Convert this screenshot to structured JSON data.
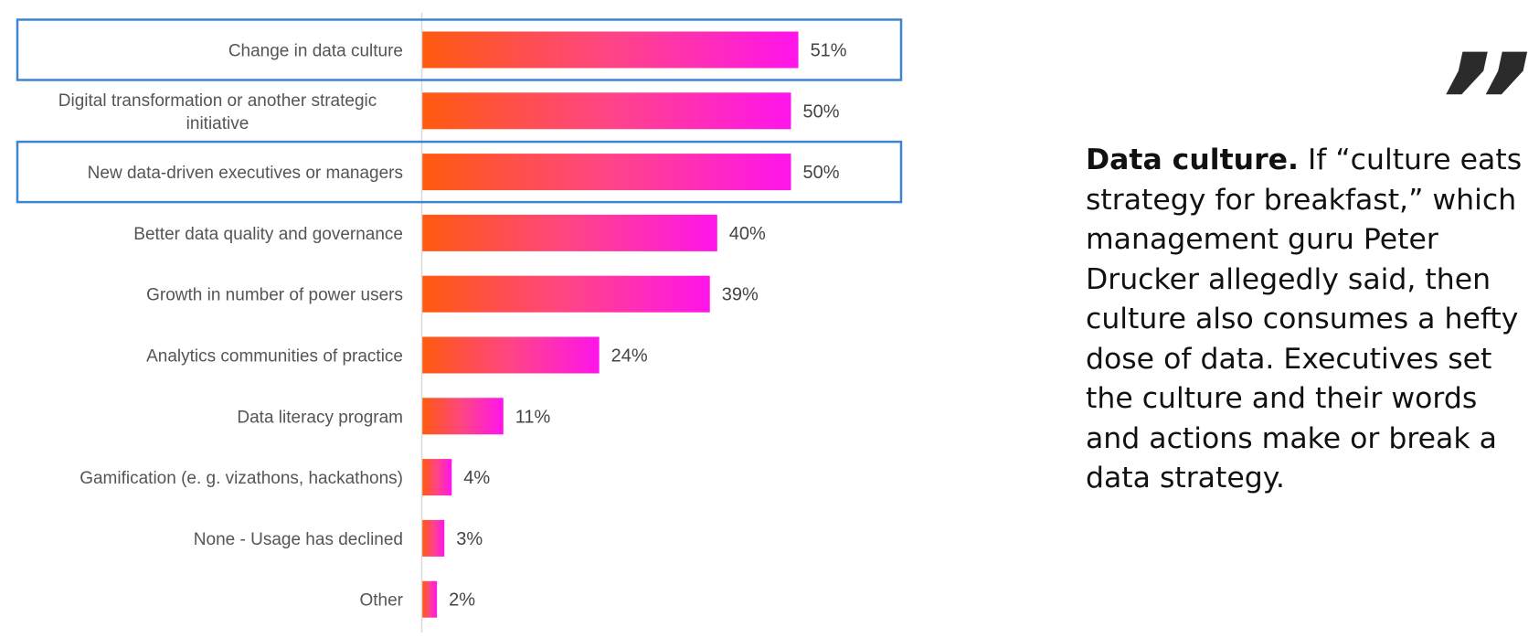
{
  "chart_data": {
    "type": "bar",
    "orientation": "horizontal",
    "categories": [
      "Change in data culture",
      "Digital transformation or another strategic initiative",
      "New data-driven executives or managers",
      "Better data quality and governance",
      "Growth in number of power users",
      "Analytics communities of practice",
      "Data literacy program",
      "Gamification (e. g. vizathons, hackathons)",
      "None - Usage has declined",
      "Other"
    ],
    "values": [
      51,
      50,
      50,
      40,
      39,
      24,
      11,
      4,
      3,
      2
    ],
    "value_labels": [
      "51%",
      "50%",
      "50%",
      "40%",
      "39%",
      "24%",
      "11%",
      "4%",
      "3%",
      "2%"
    ],
    "unit": "%",
    "xlim": [
      0,
      100
    ],
    "highlighted_categories": [
      0,
      2
    ],
    "grid": false,
    "colors": {
      "bar_gradient_start": "#ff5a0e",
      "bar_gradient_mid": "#ff4585",
      "bar_gradient_end": "#ff14ec",
      "highlight_box": "#3d86cf",
      "axis_line": "#d9d9d9"
    }
  },
  "quote": {
    "mark": "”",
    "lead": "Data culture.",
    "body": " If “culture eats strategy for breakfast,” which management guru Peter Drucker allegedly said, then culture also consumes a hefty dose of data. Executives set the culture and their words and actions make or break a data strategy."
  }
}
